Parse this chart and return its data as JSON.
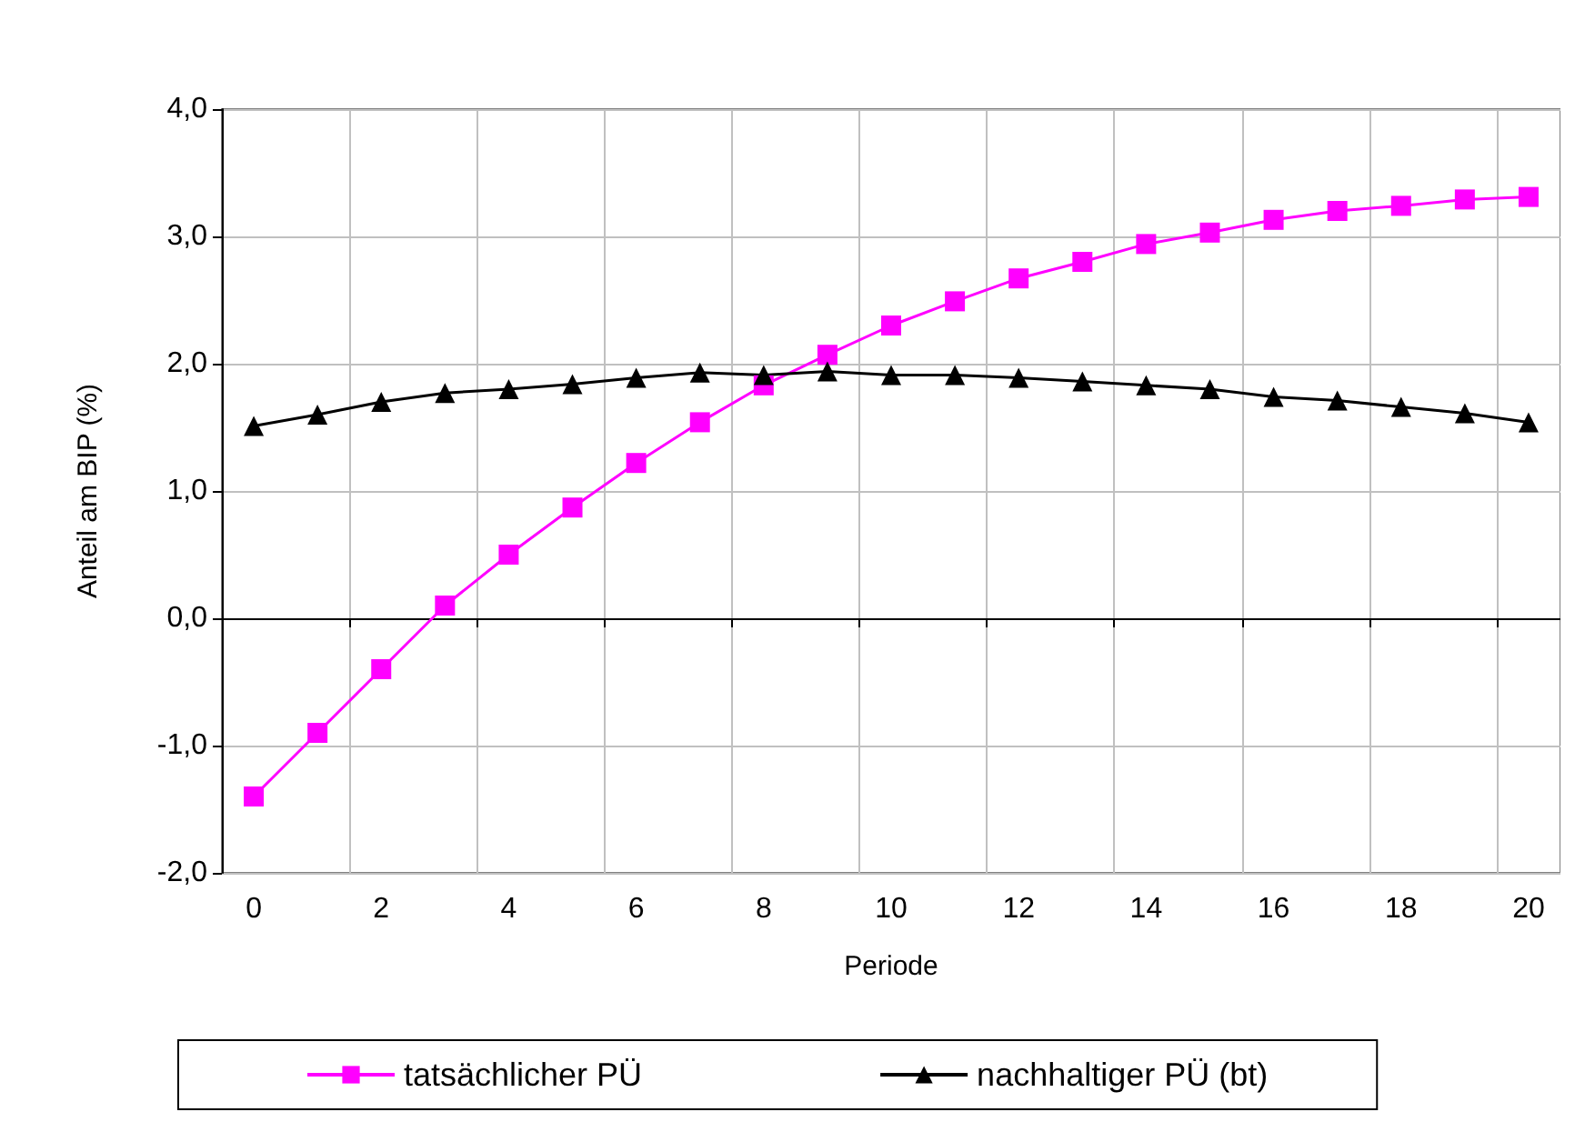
{
  "chart_data": {
    "type": "line",
    "xlabel": "Periode",
    "ylabel": "Anteil am BIP (%)",
    "categories": [
      "0",
      null,
      "2",
      null,
      "4",
      null,
      "6",
      null,
      "8",
      null,
      "10",
      null,
      "12",
      null,
      "14",
      null,
      "16",
      null,
      "18",
      null,
      "20"
    ],
    "series": [
      {
        "name": "tatsächlicher PÜ",
        "color": "#ff00ff",
        "marker": "square",
        "values": [
          -1.4,
          -0.9,
          -0.4,
          0.1,
          0.5,
          0.87,
          1.22,
          1.54,
          1.83,
          2.07,
          2.3,
          2.49,
          2.67,
          2.8,
          2.94,
          3.03,
          3.13,
          3.2,
          3.24,
          3.29,
          3.31
        ]
      },
      {
        "name": "nachhaltiger PÜ (bt)",
        "color": "#000000",
        "marker": "triangle",
        "values": [
          1.51,
          1.6,
          1.7,
          1.77,
          1.8,
          1.84,
          1.89,
          1.93,
          1.91,
          1.94,
          1.91,
          1.91,
          1.89,
          1.86,
          1.83,
          1.8,
          1.74,
          1.71,
          1.66,
          1.61,
          1.54
        ]
      }
    ],
    "ylim": [
      -2,
      4
    ],
    "yticks": [
      {
        "value": -2,
        "label": "-2,0"
      },
      {
        "value": -1,
        "label": "-1,0"
      },
      {
        "value": 0,
        "label": "0,0"
      },
      {
        "value": 1,
        "label": "1,0"
      },
      {
        "value": 2,
        "label": "2,0"
      },
      {
        "value": 3,
        "label": "3,0"
      },
      {
        "value": 4,
        "label": "4,0"
      }
    ],
    "grid": true,
    "legend": "bottom",
    "line_style": "solid"
  }
}
